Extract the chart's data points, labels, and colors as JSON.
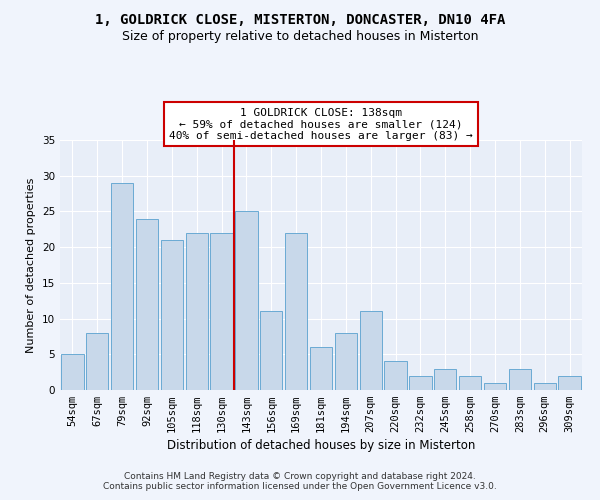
{
  "title_line1": "1, GOLDRICK CLOSE, MISTERTON, DONCASTER, DN10 4FA",
  "title_line2": "Size of property relative to detached houses in Misterton",
  "xlabel": "Distribution of detached houses by size in Misterton",
  "ylabel": "Number of detached properties",
  "categories": [
    "54sqm",
    "67sqm",
    "79sqm",
    "92sqm",
    "105sqm",
    "118sqm",
    "130sqm",
    "143sqm",
    "156sqm",
    "169sqm",
    "181sqm",
    "194sqm",
    "207sqm",
    "220sqm",
    "232sqm",
    "245sqm",
    "258sqm",
    "270sqm",
    "283sqm",
    "296sqm",
    "309sqm"
  ],
  "values": [
    5,
    8,
    29,
    24,
    21,
    22,
    22,
    25,
    11,
    22,
    6,
    8,
    11,
    4,
    2,
    3,
    2,
    1,
    3,
    1,
    2
  ],
  "bar_color": "#c8d8ea",
  "bar_edgecolor": "#6aaad4",
  "vline_index": 7,
  "vline_color": "#cc0000",
  "annotation_text": "1 GOLDRICK CLOSE: 138sqm\n← 59% of detached houses are smaller (124)\n40% of semi-detached houses are larger (83) →",
  "annotation_box_facecolor": "#ffffff",
  "annotation_box_edgecolor": "#cc0000",
  "ylim": [
    0,
    35
  ],
  "yticks": [
    0,
    5,
    10,
    15,
    20,
    25,
    30,
    35
  ],
  "footer_line1": "Contains HM Land Registry data © Crown copyright and database right 2024.",
  "footer_line2": "Contains public sector information licensed under the Open Government Licence v3.0.",
  "bg_color": "#e8eef8",
  "grid_color": "#ffffff",
  "fig_facecolor": "#f0f4fc",
  "title1_fontsize": 10,
  "title2_fontsize": 9,
  "xlabel_fontsize": 8.5,
  "ylabel_fontsize": 8,
  "tick_fontsize": 7.5,
  "annotation_fontsize": 8,
  "footer_fontsize": 6.5
}
